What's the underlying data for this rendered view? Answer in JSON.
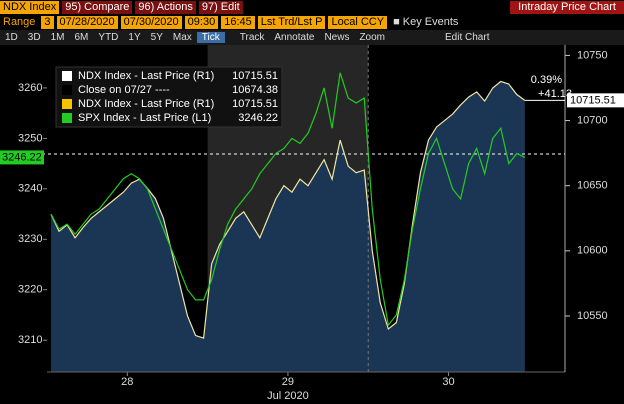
{
  "toolbar": {
    "ticker": "NDX Index",
    "menu": [
      "95) Compare",
      "96) Actions",
      "97) Edit"
    ],
    "range": {
      "label": "Range",
      "days": "3",
      "start": "07/28/2020",
      "end": "07/30/2020",
      "from": "09:30",
      "to": "16:45",
      "price": "Lst Trd/Lst P",
      "currency": "Local CCY",
      "events": "Key Events"
    },
    "periods": [
      "1D",
      "3D",
      "1M",
      "6M",
      "YTD",
      "1Y",
      "5Y",
      "Max",
      "Tick"
    ],
    "tools": [
      "Track",
      "Annotate",
      "News",
      "Zoom",
      "Edit Chart"
    ]
  },
  "chart_data": {
    "type": "line",
    "title": "Intraday Price Chart",
    "x": [
      0,
      1,
      2,
      3,
      4,
      5,
      6,
      7,
      8,
      9,
      10,
      11,
      12,
      13,
      14,
      15,
      16,
      17,
      18,
      19,
      20,
      21,
      22,
      23,
      24,
      25,
      26,
      27,
      28,
      29,
      30,
      31,
      32,
      33,
      34,
      35,
      36,
      37,
      38,
      39,
      40,
      41,
      42,
      43,
      44,
      45,
      46,
      47,
      48,
      49,
      50,
      51,
      52,
      53,
      54,
      55,
      56,
      57,
      58,
      59
    ],
    "xlim": [
      -0.5,
      64
    ],
    "xticks": [
      {
        "value": 9.5,
        "label": "28"
      },
      {
        "value": 29.5,
        "label": "29"
      },
      {
        "value": 49.5,
        "label": "30"
      }
    ],
    "xlabel": "Jul 2020",
    "ylim": [
      3203.7,
      3268.5
    ],
    "yticks": [
      3210,
      3220,
      3230,
      3240,
      3250,
      3260
    ],
    "y2lim": [
      10507,
      10758
    ],
    "y2ticks": [
      10550,
      10600,
      10650,
      10700,
      10750
    ],
    "series": [
      {
        "name": "NDX Index - Last Price (R1)",
        "color": "#f2e6a0",
        "axis": "y2",
        "values": [
          10628,
          10615,
          10620,
          10610,
          10618,
          10625,
          10630,
          10635,
          10640,
          10645,
          10652,
          10655,
          10648,
          10640,
          10625,
          10600,
          10575,
          10550,
          10535,
          10533,
          10590,
          10605,
          10615,
          10625,
          10630,
          10620,
          10610,
          10625,
          10640,
          10650,
          10645,
          10655,
          10650,
          10660,
          10670,
          10655,
          10685,
          10665,
          10660,
          10662,
          10600,
          10560,
          10540,
          10545,
          10575,
          10620,
          10660,
          10685,
          10695,
          10700,
          10705,
          10712,
          10718,
          10722,
          10715,
          10725,
          10730,
          10728,
          10720,
          10715.51
        ]
      },
      {
        "name": "SPX Index - Last Price (L1)",
        "color": "#22cc22",
        "axis": "y",
        "values": [
          3235,
          3232,
          3233,
          3231,
          3233,
          3235,
          3236,
          3238,
          3240,
          3242,
          3243,
          3242,
          3240,
          3236,
          3232,
          3228,
          3224,
          3220,
          3218,
          3218,
          3222,
          3228,
          3233,
          3236,
          3238,
          3240,
          3243,
          3245,
          3247,
          3248,
          3250,
          3249,
          3251,
          3255,
          3260,
          3252,
          3263,
          3258,
          3257,
          3258,
          3236,
          3222,
          3213,
          3215,
          3222,
          3232,
          3240,
          3247,
          3250,
          3245,
          3240,
          3238,
          3245,
          3248,
          3243,
          3250,
          3252,
          3245,
          3247,
          3246.22
        ]
      }
    ],
    "reference_line": {
      "label": "Close on 07/27 ----",
      "value": 10674.38,
      "axis": "y2"
    },
    "annotations": [
      "0.39%",
      "+41.13"
    ],
    "area_fill": "#1b3654"
  }
}
